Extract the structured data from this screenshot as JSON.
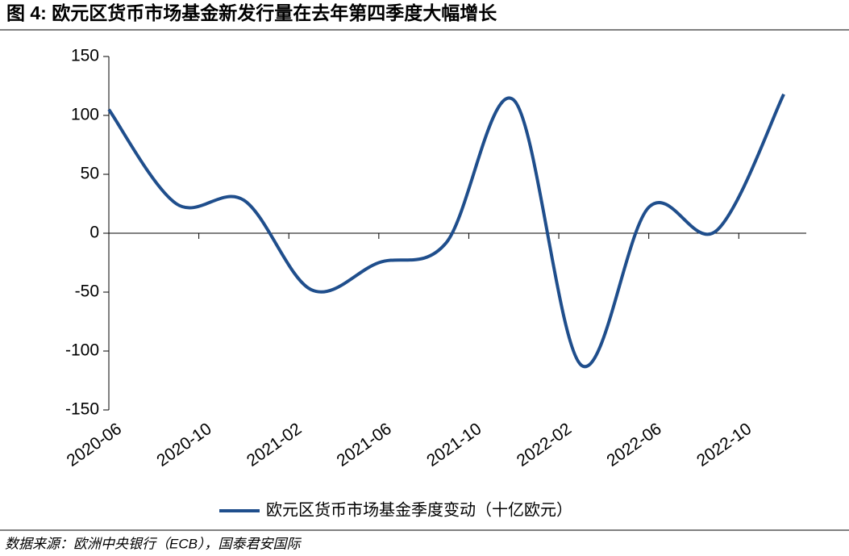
{
  "title": "图 4:  欧元区货币市场基金新发行量在去年第四季度大幅增长",
  "source": "数据来源：欧洲中央银行（ECB），国泰君安国际",
  "chart_data": {
    "type": "line",
    "x": [
      "2020-06",
      "2020-09",
      "2020-12",
      "2021-03",
      "2021-06",
      "2021-09",
      "2021-12",
      "2022-03",
      "2022-06",
      "2022-09",
      "2022-12"
    ],
    "series": [
      {
        "name": "欧元区货币市场基金季度变动（十亿欧元）",
        "color": "#1f4e8c",
        "values": [
          105,
          25,
          28,
          -48,
          -25,
          -8,
          113,
          -112,
          22,
          2,
          118
        ]
      }
    ],
    "xlim": [
      "2020-06",
      "2023-01"
    ],
    "xticks": [
      "2020-06",
      "2020-10",
      "2021-02",
      "2021-06",
      "2021-10",
      "2022-02",
      "2022-06",
      "2022-10"
    ],
    "ylim": [
      -150,
      150
    ],
    "yticks": [
      -150,
      -100,
      -50,
      0,
      50,
      100,
      150
    ],
    "smooth": true,
    "legend": "bottom"
  }
}
